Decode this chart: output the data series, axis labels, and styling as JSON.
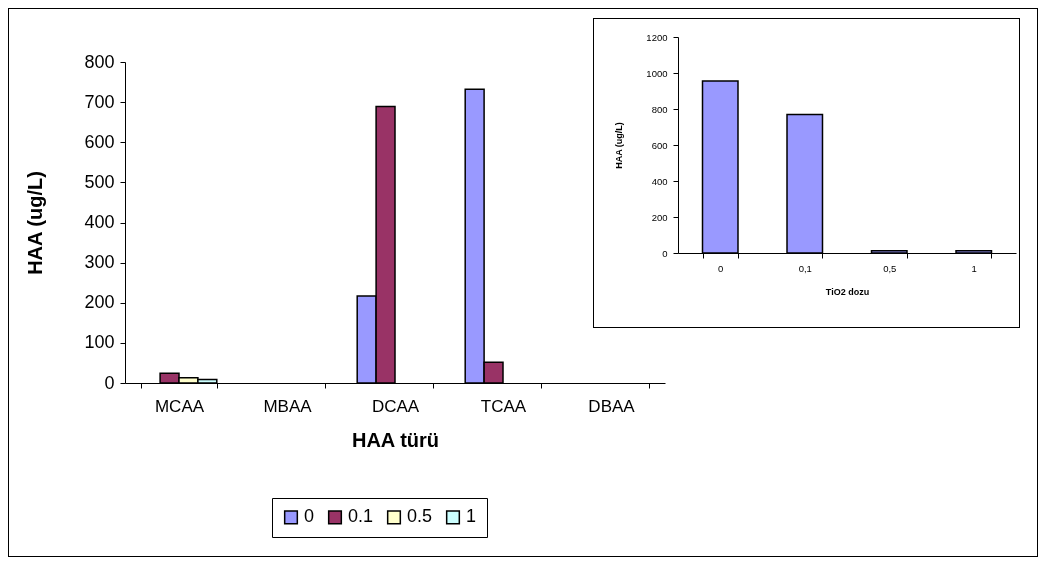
{
  "chart_data": [
    {
      "type": "bar",
      "categories": [
        "MCAA",
        "MBAA",
        "DCAA",
        "TCAA",
        "DBAA"
      ],
      "xlabel": "HAA türü",
      "ylabel": "HAA (ug/L)",
      "ylim": [
        0,
        800
      ],
      "yticks": [
        0,
        100,
        200,
        300,
        400,
        500,
        600,
        700,
        800
      ],
      "legend": "bottom",
      "series": [
        {
          "name": "0",
          "color": "#9999ff",
          "values": [
            null,
            null,
            217,
            732,
            null
          ]
        },
        {
          "name": "0.1",
          "color": "#993366",
          "values": [
            24,
            null,
            689,
            52,
            null
          ]
        },
        {
          "name": "0.5",
          "color": "#ffffcc",
          "values": [
            13,
            null,
            null,
            null,
            null
          ]
        },
        {
          "name": "1",
          "color": "#ccffff",
          "values": [
            9,
            null,
            null,
            null,
            null
          ]
        }
      ]
    },
    {
      "type": "bar",
      "categories": [
        "0",
        "0,1",
        "0,5",
        "1"
      ],
      "xlabel": "TiO2 dozu",
      "ylabel": "HAA (ug/L)",
      "ylim": [
        0,
        1200
      ],
      "yticks": [
        0,
        200,
        400,
        600,
        800,
        1000,
        1200
      ],
      "color": "#9999ff",
      "values": [
        955,
        770,
        12,
        12
      ]
    }
  ]
}
